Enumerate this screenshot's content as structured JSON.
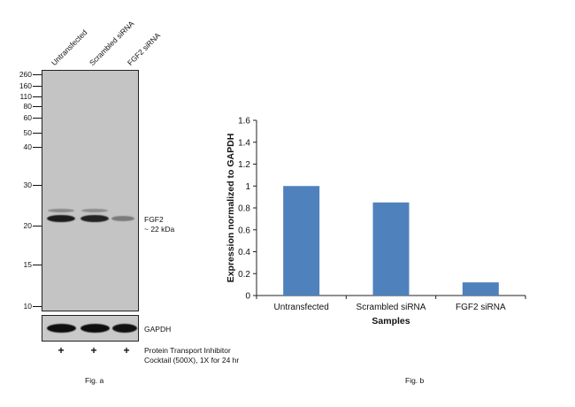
{
  "blot": {
    "lanes": [
      "Untransfected",
      "Scrambled siRNA",
      "FGF2 siRNA"
    ],
    "mw_markers": [
      "260",
      "160",
      "110",
      "80",
      "60",
      "50",
      "40",
      "30",
      "20",
      "15",
      "10"
    ],
    "target_label": "FGF2",
    "target_size": "~ 22 kDa",
    "loading_control": "GAPDH",
    "treatment_marks": [
      "+",
      "+",
      "+"
    ],
    "treatment_line1": "Protein Transport Inhibitor",
    "treatment_line2": "Cocktail (500X), 1X for 24 hr",
    "fgf2_band_relative_intensity": [
      1.0,
      0.95,
      0.35
    ],
    "caption": "Fig. a"
  },
  "chart_data": {
    "type": "bar",
    "categories": [
      "Untransfected",
      "Scrambled siRNA",
      "FGF2 siRNA"
    ],
    "values": [
      1.0,
      0.85,
      0.12
    ],
    "title": "",
    "xlabel": "Samples",
    "ylabel": "Expression normalized to GAPDH",
    "ylim": [
      0,
      1.6
    ],
    "yticks": [
      "0",
      "0.2",
      "0.4",
      "0.6",
      "0.8",
      "1",
      "1.2",
      "1.4",
      "1.6"
    ],
    "bar_color": "#4f81bd",
    "grid": false,
    "legend": "none",
    "caption": "Fig. b"
  }
}
